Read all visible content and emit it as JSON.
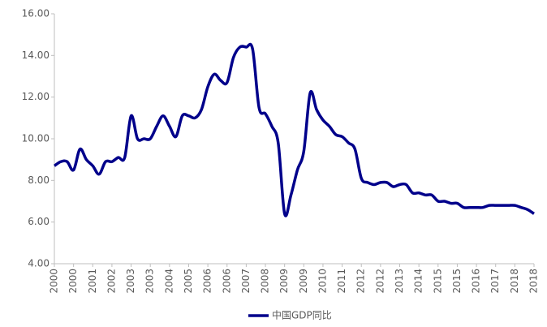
{
  "chart_data": {
    "type": "line",
    "categories": [
      "2000",
      null,
      null,
      "2000",
      null,
      null,
      "2001",
      null,
      null,
      "2002",
      null,
      null,
      "2003",
      null,
      null,
      "2003",
      null,
      null,
      "2004",
      null,
      null,
      "2005",
      null,
      null,
      "2006",
      null,
      null,
      "2006",
      null,
      null,
      "2007",
      null,
      null,
      "2008",
      null,
      null,
      "2009",
      null,
      null,
      "2009",
      null,
      null,
      "2010",
      null,
      null,
      "2011",
      null,
      null,
      "2012",
      null,
      null,
      "2012",
      null,
      null,
      "2013",
      null,
      null,
      "2014",
      null,
      null,
      "2015",
      null,
      null,
      "2015",
      null,
      null,
      "2016",
      null,
      null,
      "2017",
      null,
      null,
      "2018",
      null,
      null,
      "2018"
    ],
    "series": [
      {
        "name": "中国GDP同比",
        "color": "#00008b",
        "values": [
          8.7,
          8.9,
          8.9,
          8.5,
          9.5,
          9.0,
          8.7,
          8.3,
          8.9,
          8.9,
          9.1,
          9.1,
          11.1,
          10.0,
          10.0,
          10.0,
          10.6,
          11.1,
          10.6,
          10.1,
          11.1,
          11.1,
          11.0,
          11.4,
          12.5,
          13.1,
          12.8,
          12.7,
          13.9,
          14.4,
          14.4,
          14.3,
          11.5,
          11.2,
          10.6,
          9.8,
          6.4,
          7.3,
          8.5,
          9.4,
          12.2,
          11.4,
          10.9,
          10.6,
          10.2,
          10.1,
          9.8,
          9.5,
          8.1,
          7.9,
          7.8,
          7.9,
          7.9,
          7.7,
          7.8,
          7.8,
          7.4,
          7.4,
          7.3,
          7.3,
          7.0,
          7.0,
          6.9,
          6.9,
          6.7,
          6.7,
          6.7,
          6.7,
          6.8,
          6.8,
          6.8,
          6.8,
          6.8,
          6.7,
          6.6,
          6.4
        ]
      }
    ],
    "ylim": [
      4,
      16
    ],
    "yticks": [
      {
        "value": 4,
        "label": "4.00"
      },
      {
        "value": 6,
        "label": "6.00"
      },
      {
        "value": 8,
        "label": "8.00"
      },
      {
        "value": 10,
        "label": "10.00"
      },
      {
        "value": 12,
        "label": "12.00"
      },
      {
        "value": 14,
        "label": "14.00"
      },
      {
        "value": 16,
        "label": "16.00"
      }
    ],
    "legend": "bottom"
  }
}
